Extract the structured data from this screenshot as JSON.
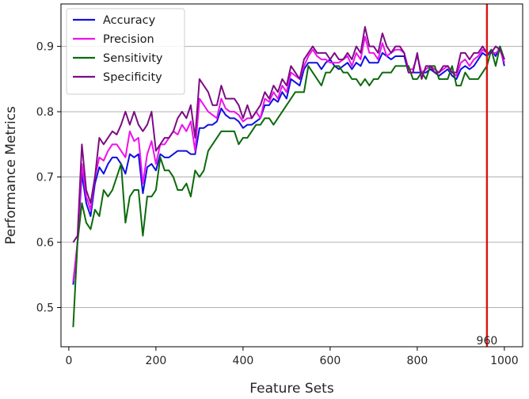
{
  "chart_data": {
    "type": "line",
    "xlabel": "Feature Sets",
    "ylabel": "Performance Metrics",
    "xlim": [
      -18,
      1042
    ],
    "ylim": [
      0.44,
      0.965
    ],
    "xticks": [
      0,
      200,
      400,
      600,
      800,
      1000
    ],
    "yticks": [
      0.5,
      0.6,
      0.7,
      0.8,
      0.9
    ],
    "grid": "horizontal",
    "legend_position": "top-left",
    "vline": {
      "x": 960,
      "label": "960",
      "color": "#dd1111"
    },
    "x": [
      10,
      20,
      30,
      40,
      50,
      60,
      70,
      80,
      90,
      100,
      110,
      120,
      130,
      140,
      150,
      160,
      170,
      180,
      190,
      200,
      210,
      220,
      230,
      240,
      250,
      260,
      270,
      280,
      290,
      300,
      310,
      320,
      330,
      340,
      350,
      360,
      370,
      380,
      390,
      400,
      410,
      420,
      430,
      440,
      450,
      460,
      470,
      480,
      490,
      500,
      510,
      520,
      530,
      540,
      550,
      560,
      570,
      580,
      590,
      600,
      610,
      620,
      630,
      640,
      650,
      660,
      670,
      680,
      690,
      700,
      710,
      720,
      730,
      740,
      750,
      760,
      770,
      780,
      790,
      800,
      810,
      820,
      830,
      840,
      850,
      860,
      870,
      880,
      890,
      900,
      910,
      920,
      930,
      940,
      950,
      960,
      970,
      980,
      990,
      1000
    ],
    "series": [
      {
        "name": "Accuracy",
        "color": "#1010e0",
        "values": [
          0.535,
          0.6,
          0.705,
          0.66,
          0.64,
          0.69,
          0.715,
          0.705,
          0.72,
          0.73,
          0.73,
          0.72,
          0.705,
          0.735,
          0.73,
          0.735,
          0.675,
          0.715,
          0.72,
          0.71,
          0.735,
          0.73,
          0.73,
          0.735,
          0.74,
          0.74,
          0.74,
          0.735,
          0.735,
          0.775,
          0.775,
          0.78,
          0.78,
          0.785,
          0.805,
          0.795,
          0.79,
          0.79,
          0.785,
          0.775,
          0.78,
          0.78,
          0.785,
          0.79,
          0.81,
          0.81,
          0.82,
          0.815,
          0.83,
          0.82,
          0.85,
          0.845,
          0.84,
          0.865,
          0.875,
          0.875,
          0.875,
          0.865,
          0.875,
          0.88,
          0.87,
          0.865,
          0.87,
          0.875,
          0.865,
          0.875,
          0.87,
          0.885,
          0.875,
          0.875,
          0.875,
          0.89,
          0.885,
          0.88,
          0.885,
          0.885,
          0.885,
          0.86,
          0.86,
          0.86,
          0.86,
          0.86,
          0.865,
          0.86,
          0.855,
          0.86,
          0.865,
          0.855,
          0.85,
          0.865,
          0.87,
          0.865,
          0.87,
          0.88,
          0.89,
          0.885,
          0.895,
          0.885,
          0.9,
          0.87
        ]
      },
      {
        "name": "Precision",
        "color": "#ee10ee",
        "values": [
          0.54,
          0.6,
          0.72,
          0.67,
          0.65,
          0.7,
          0.73,
          0.725,
          0.74,
          0.75,
          0.75,
          0.74,
          0.73,
          0.77,
          0.755,
          0.76,
          0.69,
          0.735,
          0.755,
          0.72,
          0.75,
          0.75,
          0.76,
          0.77,
          0.765,
          0.78,
          0.77,
          0.785,
          0.74,
          0.82,
          0.81,
          0.8,
          0.795,
          0.79,
          0.82,
          0.805,
          0.8,
          0.8,
          0.795,
          0.785,
          0.79,
          0.79,
          0.8,
          0.79,
          0.82,
          0.815,
          0.83,
          0.82,
          0.84,
          0.83,
          0.86,
          0.855,
          0.85,
          0.87,
          0.885,
          0.895,
          0.885,
          0.88,
          0.88,
          0.875,
          0.875,
          0.875,
          0.88,
          0.885,
          0.87,
          0.89,
          0.88,
          0.915,
          0.89,
          0.89,
          0.88,
          0.905,
          0.885,
          0.89,
          0.895,
          0.895,
          0.89,
          0.865,
          0.865,
          0.885,
          0.86,
          0.865,
          0.87,
          0.865,
          0.86,
          0.865,
          0.87,
          0.86,
          0.855,
          0.875,
          0.88,
          0.87,
          0.88,
          0.885,
          0.895,
          0.89,
          0.89,
          0.89,
          0.895,
          0.875
        ]
      },
      {
        "name": "Sensitivity",
        "color": "#0c6a0c",
        "values": [
          0.47,
          0.6,
          0.66,
          0.63,
          0.62,
          0.65,
          0.64,
          0.68,
          0.67,
          0.68,
          0.7,
          0.72,
          0.63,
          0.67,
          0.68,
          0.68,
          0.61,
          0.67,
          0.67,
          0.68,
          0.73,
          0.71,
          0.71,
          0.7,
          0.68,
          0.68,
          0.69,
          0.67,
          0.71,
          0.7,
          0.71,
          0.74,
          0.75,
          0.76,
          0.77,
          0.77,
          0.77,
          0.77,
          0.75,
          0.76,
          0.76,
          0.77,
          0.78,
          0.78,
          0.79,
          0.79,
          0.78,
          0.79,
          0.8,
          0.81,
          0.82,
          0.83,
          0.83,
          0.83,
          0.87,
          0.86,
          0.85,
          0.84,
          0.86,
          0.86,
          0.87,
          0.87,
          0.86,
          0.86,
          0.85,
          0.85,
          0.84,
          0.85,
          0.84,
          0.85,
          0.85,
          0.86,
          0.86,
          0.86,
          0.87,
          0.87,
          0.87,
          0.87,
          0.85,
          0.85,
          0.86,
          0.85,
          0.87,
          0.87,
          0.85,
          0.85,
          0.85,
          0.87,
          0.84,
          0.84,
          0.86,
          0.85,
          0.85,
          0.85,
          0.86,
          0.87,
          0.895,
          0.87,
          0.9,
          0.88
        ]
      },
      {
        "name": "Specificity",
        "color": "#7c0c84",
        "values": [
          0.6,
          0.61,
          0.75,
          0.68,
          0.66,
          0.7,
          0.76,
          0.75,
          0.76,
          0.77,
          0.765,
          0.78,
          0.8,
          0.78,
          0.8,
          0.78,
          0.77,
          0.78,
          0.8,
          0.74,
          0.75,
          0.76,
          0.76,
          0.77,
          0.79,
          0.8,
          0.79,
          0.81,
          0.76,
          0.85,
          0.84,
          0.83,
          0.81,
          0.81,
          0.84,
          0.82,
          0.82,
          0.82,
          0.81,
          0.79,
          0.81,
          0.79,
          0.8,
          0.81,
          0.83,
          0.82,
          0.84,
          0.83,
          0.85,
          0.84,
          0.87,
          0.86,
          0.85,
          0.88,
          0.89,
          0.9,
          0.89,
          0.89,
          0.89,
          0.88,
          0.89,
          0.88,
          0.88,
          0.89,
          0.88,
          0.9,
          0.89,
          0.93,
          0.9,
          0.9,
          0.89,
          0.92,
          0.9,
          0.89,
          0.9,
          0.9,
          0.89,
          0.86,
          0.86,
          0.89,
          0.85,
          0.87,
          0.87,
          0.86,
          0.86,
          0.87,
          0.87,
          0.86,
          0.86,
          0.89,
          0.89,
          0.88,
          0.89,
          0.89,
          0.9,
          0.89,
          0.89,
          0.9,
          0.895,
          0.88
        ]
      }
    ]
  }
}
